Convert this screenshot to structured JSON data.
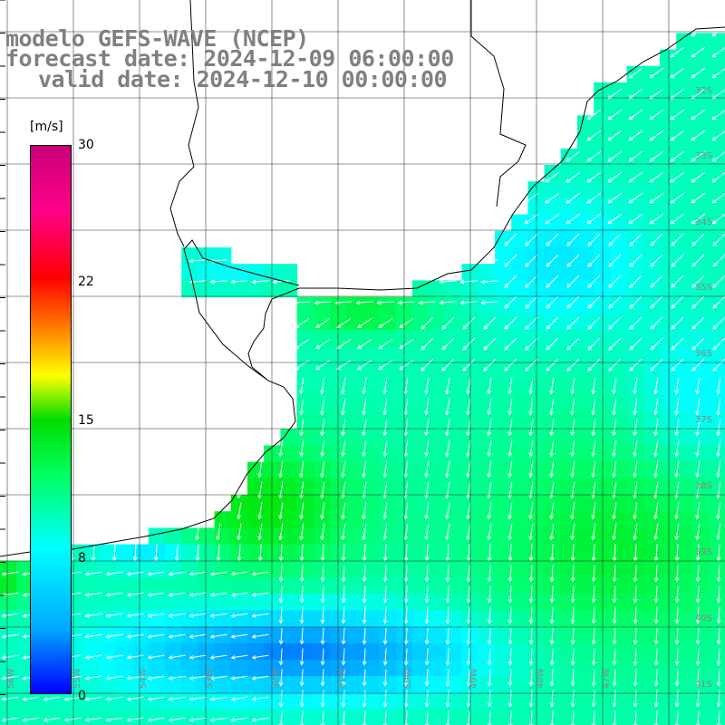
{
  "title": {
    "model": "modelo GEFS-WAVE (NCEP)",
    "forecast": "forecast date: 2024-12-09 06:00:00",
    "valid": "valid date: 2024-12-10 00:00:00"
  },
  "legend": {
    "unit": "[m/s]",
    "ticks": [
      "30",
      "22",
      "15",
      "8",
      "0"
    ],
    "ticks_values": [
      30,
      22,
      15,
      8,
      0
    ],
    "range": [
      0,
      30
    ],
    "colors": [
      "#0000ff",
      "#00aaff",
      "#00ffff",
      "#00ff60",
      "#00dd00",
      "#ffff00",
      "#ff8800",
      "#ff0000",
      "#ff0088",
      "#c80078"
    ]
  },
  "map": {
    "lat_labels": [
      "32S",
      "33S",
      "34S",
      "35S",
      "36S",
      "37S",
      "38S",
      "39S",
      "40S",
      "41S"
    ],
    "lon_labels": [
      "56W",
      "55W",
      "54W",
      "53W",
      "52W",
      "51W",
      "50W",
      "49W",
      "48W",
      "47W"
    ],
    "land_color": "#ffffff",
    "grid_color": "#333333",
    "arrow_color": "#ffffff"
  }
}
